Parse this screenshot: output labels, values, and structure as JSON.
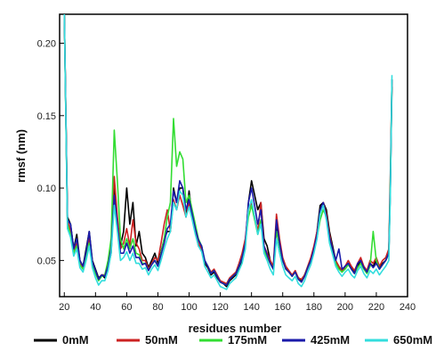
{
  "chart_data": {
    "type": "line",
    "xlabel": "residues number",
    "ylabel": "rmsf (nm)",
    "xlim": [
      17,
      240
    ],
    "ylim": [
      0.025,
      0.22
    ],
    "xticks": [
      20,
      40,
      60,
      80,
      100,
      120,
      140,
      160,
      180,
      200,
      220,
      240
    ],
    "yticks": [
      0.05,
      0.1,
      0.15,
      0.2
    ],
    "ytick_labels": [
      "0.05",
      "0.10",
      "0.15",
      "0.20"
    ],
    "legend_position": "bottom",
    "grid": false,
    "series": [
      {
        "name": "0mM",
        "color": "#000000",
        "x": [
          20,
          22,
          24,
          26,
          28,
          30,
          32,
          34,
          36,
          38,
          40,
          42,
          44,
          46,
          48,
          50,
          52,
          54,
          56,
          58,
          60,
          62,
          64,
          66,
          68,
          70,
          72,
          74,
          76,
          78,
          80,
          82,
          84,
          86,
          88,
          90,
          92,
          94,
          96,
          98,
          100,
          102,
          104,
          106,
          108,
          110,
          112,
          114,
          116,
          118,
          120,
          122,
          124,
          126,
          128,
          130,
          132,
          134,
          136,
          138,
          140,
          142,
          144,
          146,
          148,
          150,
          152,
          154,
          156,
          158,
          160,
          162,
          164,
          166,
          168,
          170,
          172,
          174,
          176,
          178,
          180,
          182,
          184,
          186,
          188,
          190,
          192,
          194,
          196,
          198,
          200,
          202,
          204,
          206,
          208,
          210,
          212,
          214,
          216,
          218,
          220,
          222,
          224,
          226,
          228,
          229,
          230
        ],
        "y": [
          0.22,
          0.08,
          0.075,
          0.058,
          0.068,
          0.05,
          0.046,
          0.058,
          0.07,
          0.05,
          0.044,
          0.038,
          0.04,
          0.038,
          0.045,
          0.055,
          0.1,
          0.075,
          0.06,
          0.07,
          0.1,
          0.075,
          0.09,
          0.06,
          0.07,
          0.055,
          0.052,
          0.045,
          0.05,
          0.055,
          0.048,
          0.056,
          0.065,
          0.07,
          0.07,
          0.1,
          0.09,
          0.1,
          0.1,
          0.08,
          0.098,
          0.08,
          0.07,
          0.06,
          0.06,
          0.048,
          0.045,
          0.04,
          0.042,
          0.038,
          0.035,
          0.034,
          0.032,
          0.036,
          0.038,
          0.04,
          0.045,
          0.05,
          0.06,
          0.09,
          0.105,
          0.095,
          0.085,
          0.09,
          0.065,
          0.06,
          0.05,
          0.045,
          0.075,
          0.06,
          0.05,
          0.045,
          0.042,
          0.04,
          0.042,
          0.038,
          0.036,
          0.04,
          0.045,
          0.05,
          0.058,
          0.07,
          0.088,
          0.09,
          0.085,
          0.07,
          0.06,
          0.05,
          0.045,
          0.042,
          0.046,
          0.048,
          0.045,
          0.042,
          0.046,
          0.05,
          0.045,
          0.042,
          0.048,
          0.046,
          0.05,
          0.045,
          0.048,
          0.05,
          0.055,
          0.1,
          0.17
        ]
      },
      {
        "name": "50mM",
        "color": "#cc2222",
        "x": [
          20,
          22,
          24,
          26,
          28,
          30,
          32,
          34,
          36,
          38,
          40,
          42,
          44,
          46,
          48,
          50,
          52,
          54,
          56,
          58,
          60,
          62,
          64,
          66,
          68,
          70,
          72,
          74,
          76,
          78,
          80,
          82,
          84,
          86,
          88,
          90,
          92,
          94,
          96,
          98,
          100,
          102,
          104,
          106,
          108,
          110,
          112,
          114,
          116,
          118,
          120,
          122,
          124,
          126,
          128,
          130,
          132,
          134,
          136,
          138,
          140,
          142,
          144,
          146,
          148,
          150,
          152,
          154,
          156,
          158,
          160,
          162,
          164,
          166,
          168,
          170,
          172,
          174,
          176,
          178,
          180,
          182,
          184,
          186,
          188,
          190,
          192,
          194,
          196,
          198,
          200,
          202,
          204,
          206,
          208,
          210,
          212,
          214,
          216,
          218,
          220,
          222,
          224,
          226,
          228,
          229,
          230
        ],
        "y": [
          0.22,
          0.078,
          0.07,
          0.056,
          0.062,
          0.048,
          0.045,
          0.055,
          0.065,
          0.048,
          0.042,
          0.037,
          0.04,
          0.04,
          0.048,
          0.06,
          0.108,
          0.08,
          0.058,
          0.062,
          0.072,
          0.06,
          0.078,
          0.062,
          0.058,
          0.05,
          0.05,
          0.044,
          0.048,
          0.052,
          0.05,
          0.062,
          0.075,
          0.085,
          0.07,
          0.092,
          0.085,
          0.095,
          0.088,
          0.08,
          0.09,
          0.082,
          0.072,
          0.062,
          0.058,
          0.05,
          0.046,
          0.042,
          0.044,
          0.04,
          0.036,
          0.035,
          0.034,
          0.038,
          0.04,
          0.042,
          0.048,
          0.055,
          0.065,
          0.085,
          0.09,
          0.08,
          0.07,
          0.09,
          0.06,
          0.055,
          0.05,
          0.046,
          0.082,
          0.065,
          0.052,
          0.046,
          0.043,
          0.04,
          0.043,
          0.038,
          0.037,
          0.04,
          0.046,
          0.052,
          0.06,
          0.07,
          0.082,
          0.09,
          0.082,
          0.068,
          0.058,
          0.05,
          0.046,
          0.043,
          0.046,
          0.05,
          0.046,
          0.043,
          0.048,
          0.052,
          0.046,
          0.043,
          0.05,
          0.048,
          0.052,
          0.046,
          0.05,
          0.052,
          0.058,
          0.11,
          0.175
        ]
      },
      {
        "name": "175mM",
        "color": "#33dd33",
        "x": [
          20,
          22,
          24,
          26,
          28,
          30,
          32,
          34,
          36,
          38,
          40,
          42,
          44,
          46,
          48,
          50,
          52,
          54,
          56,
          58,
          60,
          62,
          64,
          66,
          68,
          70,
          72,
          74,
          76,
          78,
          80,
          82,
          84,
          86,
          88,
          90,
          92,
          94,
          96,
          98,
          100,
          102,
          104,
          106,
          108,
          110,
          112,
          114,
          116,
          118,
          120,
          122,
          124,
          126,
          128,
          130,
          132,
          134,
          136,
          138,
          140,
          142,
          144,
          146,
          148,
          150,
          152,
          154,
          156,
          158,
          160,
          162,
          164,
          166,
          168,
          170,
          172,
          174,
          176,
          178,
          180,
          182,
          184,
          186,
          188,
          190,
          192,
          194,
          196,
          198,
          200,
          202,
          204,
          206,
          208,
          210,
          212,
          214,
          216,
          218,
          220,
          222,
          224,
          226,
          228,
          229,
          230
        ],
        "y": [
          0.22,
          0.075,
          0.068,
          0.055,
          0.06,
          0.047,
          0.044,
          0.054,
          0.062,
          0.047,
          0.041,
          0.036,
          0.039,
          0.04,
          0.05,
          0.065,
          0.14,
          0.105,
          0.065,
          0.058,
          0.065,
          0.058,
          0.065,
          0.055,
          0.054,
          0.048,
          0.048,
          0.043,
          0.047,
          0.05,
          0.046,
          0.055,
          0.065,
          0.08,
          0.09,
          0.148,
          0.115,
          0.125,
          0.12,
          0.09,
          0.095,
          0.085,
          0.075,
          0.065,
          0.06,
          0.05,
          0.046,
          0.041,
          0.043,
          0.039,
          0.035,
          0.034,
          0.033,
          0.037,
          0.039,
          0.041,
          0.046,
          0.052,
          0.062,
          0.08,
          0.088,
          0.078,
          0.068,
          0.078,
          0.058,
          0.052,
          0.048,
          0.044,
          0.07,
          0.06,
          0.05,
          0.044,
          0.042,
          0.039,
          0.042,
          0.037,
          0.035,
          0.039,
          0.045,
          0.05,
          0.056,
          0.066,
          0.078,
          0.085,
          0.08,
          0.066,
          0.056,
          0.048,
          0.044,
          0.042,
          0.044,
          0.047,
          0.044,
          0.041,
          0.045,
          0.048,
          0.044,
          0.041,
          0.046,
          0.07,
          0.05,
          0.044,
          0.047,
          0.05,
          0.055,
          0.105,
          0.175
        ]
      },
      {
        "name": "425mM",
        "color": "#1a1aaa",
        "x": [
          20,
          22,
          24,
          26,
          28,
          30,
          32,
          34,
          36,
          38,
          40,
          42,
          44,
          46,
          48,
          50,
          52,
          54,
          56,
          58,
          60,
          62,
          64,
          66,
          68,
          70,
          72,
          74,
          76,
          78,
          80,
          82,
          84,
          86,
          88,
          90,
          92,
          94,
          96,
          98,
          100,
          102,
          104,
          106,
          108,
          110,
          112,
          114,
          116,
          118,
          120,
          122,
          124,
          126,
          128,
          130,
          132,
          134,
          136,
          138,
          140,
          142,
          144,
          146,
          148,
          150,
          152,
          154,
          156,
          158,
          160,
          162,
          164,
          166,
          168,
          170,
          172,
          174,
          176,
          178,
          180,
          182,
          184,
          186,
          188,
          190,
          192,
          194,
          196,
          198,
          200,
          202,
          204,
          206,
          208,
          210,
          212,
          214,
          216,
          218,
          220,
          222,
          224,
          226,
          228,
          229,
          230
        ],
        "y": [
          0.22,
          0.078,
          0.075,
          0.058,
          0.065,
          0.05,
          0.046,
          0.056,
          0.07,
          0.049,
          0.043,
          0.037,
          0.04,
          0.039,
          0.046,
          0.058,
          0.095,
          0.075,
          0.055,
          0.055,
          0.062,
          0.055,
          0.06,
          0.052,
          0.052,
          0.047,
          0.048,
          0.043,
          0.047,
          0.05,
          0.046,
          0.054,
          0.062,
          0.072,
          0.075,
          0.098,
          0.09,
          0.105,
          0.1,
          0.085,
          0.092,
          0.082,
          0.072,
          0.064,
          0.06,
          0.05,
          0.046,
          0.041,
          0.043,
          0.039,
          0.035,
          0.034,
          0.033,
          0.037,
          0.039,
          0.041,
          0.046,
          0.052,
          0.062,
          0.09,
          0.1,
          0.088,
          0.075,
          0.085,
          0.06,
          0.054,
          0.048,
          0.044,
          0.078,
          0.062,
          0.05,
          0.044,
          0.042,
          0.039,
          0.042,
          0.037,
          0.035,
          0.039,
          0.045,
          0.05,
          0.058,
          0.068,
          0.085,
          0.09,
          0.08,
          0.066,
          0.058,
          0.05,
          0.058,
          0.044,
          0.046,
          0.048,
          0.044,
          0.041,
          0.048,
          0.05,
          0.045,
          0.042,
          0.048,
          0.045,
          0.048,
          0.044,
          0.047,
          0.05,
          0.055,
          0.1,
          0.175
        ]
      },
      {
        "name": "650mM",
        "color": "#33dddd",
        "x": [
          20,
          22,
          24,
          26,
          28,
          30,
          32,
          34,
          36,
          38,
          40,
          42,
          44,
          46,
          48,
          50,
          52,
          54,
          56,
          58,
          60,
          62,
          64,
          66,
          68,
          70,
          72,
          74,
          76,
          78,
          80,
          82,
          84,
          86,
          88,
          90,
          92,
          94,
          96,
          98,
          100,
          102,
          104,
          106,
          108,
          110,
          112,
          114,
          116,
          118,
          120,
          122,
          124,
          126,
          128,
          130,
          132,
          134,
          136,
          138,
          140,
          142,
          144,
          146,
          148,
          150,
          152,
          154,
          156,
          158,
          160,
          162,
          164,
          166,
          168,
          170,
          172,
          174,
          176,
          178,
          180,
          182,
          184,
          186,
          188,
          190,
          192,
          194,
          196,
          198,
          200,
          202,
          204,
          206,
          208,
          210,
          212,
          214,
          216,
          218,
          220,
          222,
          224,
          226,
          228,
          229,
          230
        ],
        "y": [
          0.22,
          0.072,
          0.066,
          0.053,
          0.058,
          0.045,
          0.042,
          0.05,
          0.06,
          0.045,
          0.038,
          0.033,
          0.036,
          0.036,
          0.043,
          0.055,
          0.088,
          0.07,
          0.05,
          0.052,
          0.056,
          0.05,
          0.055,
          0.048,
          0.048,
          0.044,
          0.045,
          0.04,
          0.044,
          0.047,
          0.043,
          0.05,
          0.058,
          0.065,
          0.07,
          0.09,
          0.085,
          0.098,
          0.095,
          0.08,
          0.087,
          0.078,
          0.068,
          0.06,
          0.056,
          0.046,
          0.042,
          0.038,
          0.04,
          0.036,
          0.032,
          0.031,
          0.03,
          0.034,
          0.036,
          0.038,
          0.043,
          0.048,
          0.058,
          0.085,
          0.092,
          0.08,
          0.068,
          0.075,
          0.055,
          0.05,
          0.044,
          0.04,
          0.065,
          0.055,
          0.046,
          0.04,
          0.038,
          0.036,
          0.039,
          0.034,
          0.032,
          0.036,
          0.042,
          0.047,
          0.055,
          0.065,
          0.082,
          0.088,
          0.078,
          0.062,
          0.054,
          0.046,
          0.042,
          0.039,
          0.042,
          0.044,
          0.04,
          0.038,
          0.043,
          0.046,
          0.041,
          0.038,
          0.043,
          0.041,
          0.044,
          0.04,
          0.043,
          0.046,
          0.05,
          0.095,
          0.178
        ]
      }
    ]
  }
}
